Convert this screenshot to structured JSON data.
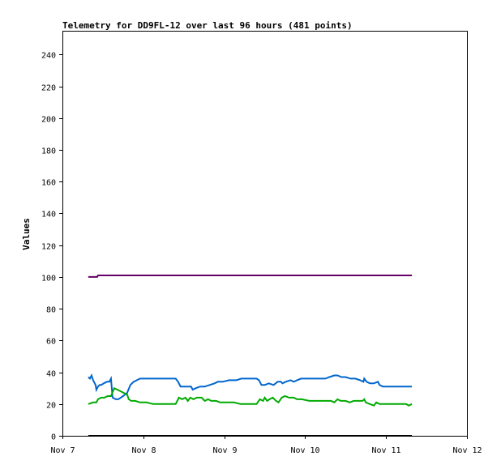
{
  "chart_data": {
    "type": "line",
    "title": "Telemetry for DD9FL-12 over last 96 hours (481 points)",
    "xlabel": "",
    "ylabel": "Values",
    "x_ticks": [
      "Nov 7",
      "Nov 8",
      "Nov 9",
      "Nov 10",
      "Nov 11",
      "Nov 12"
    ],
    "x_range_days": [
      7,
      12
    ],
    "y_ticks": [
      0,
      20,
      40,
      60,
      80,
      100,
      120,
      140,
      160,
      180,
      200,
      220,
      240
    ],
    "ylim": [
      0,
      255
    ],
    "grid": false,
    "legend": "none",
    "series": [
      {
        "color": "#660066",
        "points": [
          [
            7.32,
            100
          ],
          [
            7.43,
            100
          ],
          [
            7.44,
            101
          ],
          [
            11.32,
            101
          ]
        ]
      },
      {
        "color": "#0066cc",
        "points": [
          [
            7.32,
            37
          ],
          [
            7.34,
            36
          ],
          [
            7.36,
            38
          ],
          [
            7.38,
            35
          ],
          [
            7.41,
            32
          ],
          [
            7.42,
            29
          ],
          [
            7.44,
            31
          ],
          [
            7.46,
            32
          ],
          [
            7.48,
            32
          ],
          [
            7.51,
            33
          ],
          [
            7.55,
            34
          ],
          [
            7.58,
            34
          ],
          [
            7.6,
            36
          ],
          [
            7.62,
            24
          ],
          [
            7.66,
            23
          ],
          [
            7.69,
            23
          ],
          [
            7.72,
            24
          ],
          [
            7.75,
            25
          ],
          [
            7.8,
            27
          ],
          [
            7.84,
            32
          ],
          [
            7.88,
            34
          ],
          [
            7.92,
            35
          ],
          [
            7.96,
            36
          ],
          [
            8.0,
            36
          ],
          [
            8.1,
            36
          ],
          [
            8.2,
            36
          ],
          [
            8.3,
            36
          ],
          [
            8.4,
            36
          ],
          [
            8.43,
            34
          ],
          [
            8.46,
            31
          ],
          [
            8.5,
            31
          ],
          [
            8.55,
            31
          ],
          [
            8.59,
            31
          ],
          [
            8.61,
            29
          ],
          [
            8.65,
            30
          ],
          [
            8.7,
            31
          ],
          [
            8.76,
            31
          ],
          [
            8.82,
            32
          ],
          [
            8.88,
            33
          ],
          [
            8.92,
            34
          ],
          [
            8.98,
            34
          ],
          [
            9.06,
            35
          ],
          [
            9.15,
            35
          ],
          [
            9.21,
            36
          ],
          [
            9.3,
            36
          ],
          [
            9.4,
            36
          ],
          [
            9.43,
            35
          ],
          [
            9.46,
            32
          ],
          [
            9.5,
            32
          ],
          [
            9.55,
            33
          ],
          [
            9.61,
            32
          ],
          [
            9.66,
            34
          ],
          [
            9.7,
            34
          ],
          [
            9.72,
            33
          ],
          [
            9.76,
            34
          ],
          [
            9.82,
            35
          ],
          [
            9.86,
            34
          ],
          [
            9.9,
            35
          ],
          [
            9.95,
            36
          ],
          [
            10.05,
            36
          ],
          [
            10.15,
            36
          ],
          [
            10.25,
            36
          ],
          [
            10.3,
            37
          ],
          [
            10.36,
            38
          ],
          [
            10.4,
            38
          ],
          [
            10.45,
            37
          ],
          [
            10.5,
            37
          ],
          [
            10.56,
            36
          ],
          [
            10.62,
            36
          ],
          [
            10.68,
            35
          ],
          [
            10.72,
            34
          ],
          [
            10.73,
            36
          ],
          [
            10.76,
            34
          ],
          [
            10.8,
            33
          ],
          [
            10.85,
            33
          ],
          [
            10.9,
            34
          ],
          [
            10.92,
            32
          ],
          [
            10.96,
            31
          ],
          [
            11.05,
            31
          ],
          [
            11.15,
            31
          ],
          [
            11.32,
            31
          ]
        ]
      },
      {
        "color": "#00aa00",
        "points": [
          [
            7.32,
            20
          ],
          [
            7.38,
            21
          ],
          [
            7.42,
            21
          ],
          [
            7.44,
            23
          ],
          [
            7.48,
            24
          ],
          [
            7.52,
            24
          ],
          [
            7.56,
            25
          ],
          [
            7.6,
            25
          ],
          [
            7.64,
            30
          ],
          [
            7.68,
            29
          ],
          [
            7.72,
            28
          ],
          [
            7.76,
            27
          ],
          [
            7.8,
            26
          ],
          [
            7.82,
            23
          ],
          [
            7.85,
            22
          ],
          [
            7.9,
            22
          ],
          [
            7.96,
            21
          ],
          [
            8.04,
            21
          ],
          [
            8.12,
            20
          ],
          [
            8.2,
            20
          ],
          [
            8.3,
            20
          ],
          [
            8.4,
            20
          ],
          [
            8.44,
            24
          ],
          [
            8.48,
            23
          ],
          [
            8.52,
            24
          ],
          [
            8.55,
            22
          ],
          [
            8.58,
            24
          ],
          [
            8.62,
            23
          ],
          [
            8.66,
            24
          ],
          [
            8.72,
            24
          ],
          [
            8.76,
            22
          ],
          [
            8.8,
            23
          ],
          [
            8.84,
            22
          ],
          [
            8.9,
            22
          ],
          [
            8.95,
            21
          ],
          [
            9.05,
            21
          ],
          [
            9.12,
            21
          ],
          [
            9.2,
            20
          ],
          [
            9.3,
            20
          ],
          [
            9.4,
            20
          ],
          [
            9.44,
            23
          ],
          [
            9.48,
            22
          ],
          [
            9.5,
            24
          ],
          [
            9.53,
            22
          ],
          [
            9.56,
            23
          ],
          [
            9.6,
            24
          ],
          [
            9.64,
            22
          ],
          [
            9.67,
            21
          ],
          [
            9.71,
            24
          ],
          [
            9.75,
            25
          ],
          [
            9.8,
            24
          ],
          [
            9.86,
            24
          ],
          [
            9.9,
            23
          ],
          [
            9.96,
            23
          ],
          [
            10.05,
            22
          ],
          [
            10.15,
            22
          ],
          [
            10.25,
            22
          ],
          [
            10.32,
            22
          ],
          [
            10.36,
            21
          ],
          [
            10.4,
            23
          ],
          [
            10.44,
            22
          ],
          [
            10.5,
            22
          ],
          [
            10.55,
            21
          ],
          [
            10.6,
            22
          ],
          [
            10.66,
            22
          ],
          [
            10.71,
            22
          ],
          [
            10.73,
            23
          ],
          [
            10.75,
            21
          ],
          [
            10.8,
            20
          ],
          [
            10.85,
            19
          ],
          [
            10.88,
            21
          ],
          [
            10.92,
            20
          ],
          [
            10.96,
            20
          ],
          [
            11.05,
            20
          ],
          [
            11.15,
            20
          ],
          [
            11.25,
            20
          ],
          [
            11.28,
            19
          ],
          [
            11.32,
            20
          ]
        ]
      },
      {
        "color": "#000000",
        "points": [
          [
            7.32,
            0
          ],
          [
            11.32,
            0
          ]
        ]
      }
    ]
  }
}
